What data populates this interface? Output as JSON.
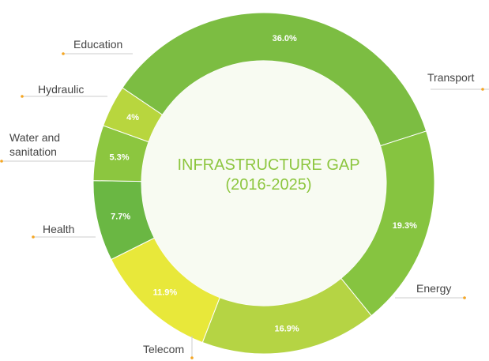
{
  "chart_data": {
    "type": "pie",
    "donut": true,
    "title_lines": [
      "INFRASTRUCTURE GAP",
      "(2016-2025)"
    ],
    "slices": [
      {
        "name": "Transport",
        "value_label": "36.0%",
        "value": 36.0,
        "color": "#7cbd42"
      },
      {
        "name": "Energy",
        "value_label": "19.3%",
        "value": 19.3,
        "color": "#86c440"
      },
      {
        "name": "Telecom",
        "value_label": "16.9%",
        "value": 16.9,
        "color": "#b5d444"
      },
      {
        "name": "Health",
        "value_label": "11.9%",
        "value": 11.9,
        "color": "#e8e83a"
      },
      {
        "name": "Water and sanitation",
        "label_lines": [
          "Water and",
          "sanitation"
        ],
        "value_label": "7.7%",
        "value": 7.7,
        "color": "#6ab743"
      },
      {
        "name": "Hydraulic",
        "value_label": "5.3%",
        "value": 5.3,
        "color": "#8cc63f"
      },
      {
        "name": "Education",
        "value_label": "4%",
        "value": 4.0,
        "color": "#b8d63e"
      }
    ],
    "legend": "none",
    "leader_color": "#f5a623",
    "leader_line_color": "#cccccc"
  }
}
